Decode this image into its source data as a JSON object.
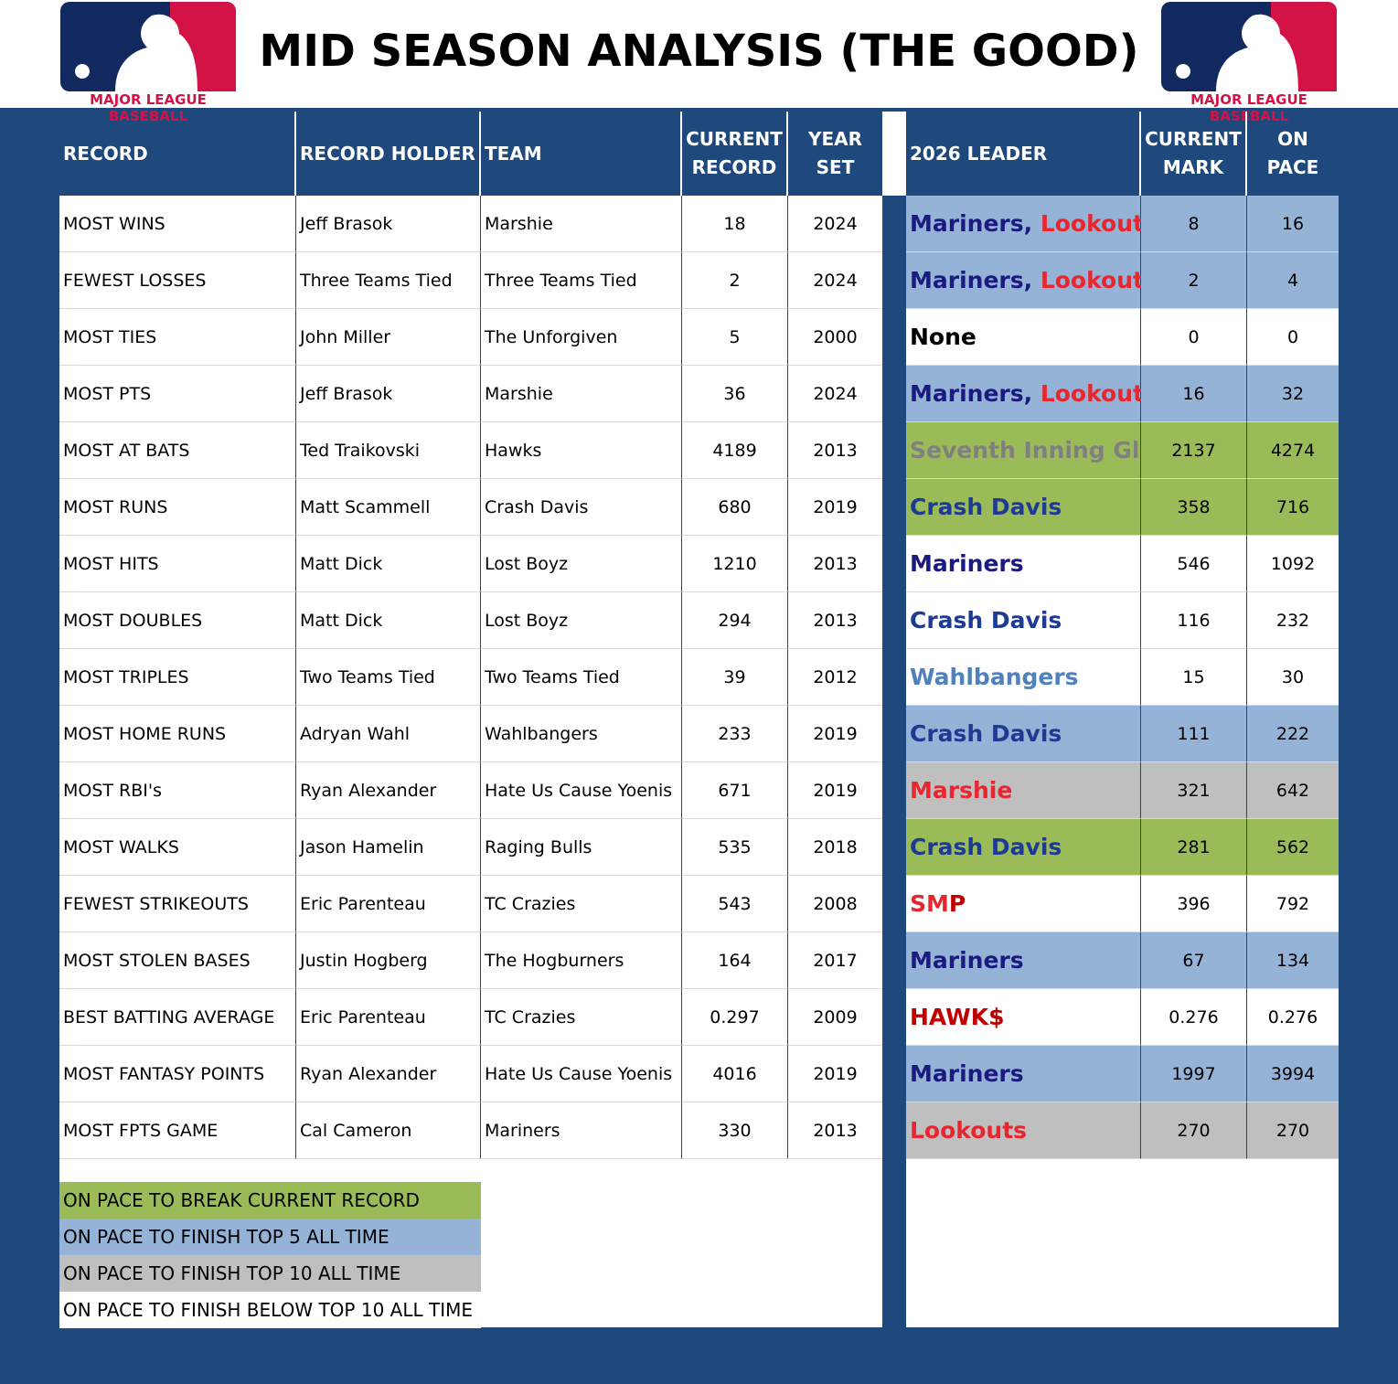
{
  "header": {
    "title": "MID SEASON ANALYSIS (THE GOOD)",
    "logo_text": "MAJOR LEAGUE BASEBALL"
  },
  "table": {
    "columns": [
      "RECORD",
      "RECORD HOLDER",
      "TEAM",
      "CURRENT RECORD",
      "YEAR SET",
      "2026 LEADER",
      "CURRENT MARK",
      "ON PACE"
    ],
    "rows": [
      [
        "MOST WINS",
        "Jeff Brasok",
        "Marshie",
        18,
        2024,
        [
          {
            "text": "Mariners, ",
            "color": "#1a1a80"
          },
          {
            "text": "Lookouts",
            "color": "#e8262f"
          }
        ],
        8,
        16,
        "#95b3d7"
      ],
      [
        "FEWEST LOSSES",
        "Three Teams Tied",
        "Three Teams Tied",
        2,
        2024,
        [
          {
            "text": "Mariners, ",
            "color": "#1a1a80"
          },
          {
            "text": "Lookouts",
            "color": "#e8262f"
          }
        ],
        2,
        4,
        "#95b3d7"
      ],
      [
        "MOST TIES",
        "John Miller",
        "The Unforgiven",
        5,
        2000,
        [
          {
            "text": "None",
            "color": "#000000"
          }
        ],
        0,
        0,
        "#ffffff"
      ],
      [
        "MOST PTS",
        "Jeff Brasok",
        "Marshie",
        36,
        2024,
        [
          {
            "text": "Mariners, ",
            "color": "#1a1a80"
          },
          {
            "text": "Lookouts",
            "color": "#e8262f"
          }
        ],
        16,
        32,
        "#95b3d7"
      ],
      [
        "MOST AT BATS",
        "Ted Traikovski",
        "Hawks",
        4189,
        2013,
        [
          {
            "text": "Seventh Inning Glitch",
            "color": "#808080"
          }
        ],
        2137,
        4274,
        "#9bbb59"
      ],
      [
        "MOST RUNS",
        "Matt Scammell",
        "Crash Davis",
        680,
        2019,
        [
          {
            "text": "Crash Davis",
            "color": "#1f3a93"
          }
        ],
        358,
        716,
        "#9bbb59"
      ],
      [
        "MOST HITS",
        "Matt Dick",
        "Lost Boyz",
        1210,
        2013,
        [
          {
            "text": "Mariners",
            "color": "#1a1a80"
          }
        ],
        546,
        1092,
        "#ffffff"
      ],
      [
        "MOST DOUBLES",
        "Matt Dick",
        "Lost Boyz",
        294,
        2013,
        [
          {
            "text": "Crash Davis",
            "color": "#1f3a93"
          }
        ],
        116,
        232,
        "#ffffff"
      ],
      [
        "MOST TRIPLES",
        "Two Teams Tied",
        "Two Teams Tied",
        39,
        2012,
        [
          {
            "text": "Wahlbangers",
            "color": "#4f81bd"
          }
        ],
        15,
        30,
        "#ffffff"
      ],
      [
        "MOST HOME RUNS",
        "Adryan Wahl",
        "Wahlbangers",
        233,
        2019,
        [
          {
            "text": "Crash Davis",
            "color": "#1f3a93"
          }
        ],
        111,
        222,
        "#95b3d7"
      ],
      [
        "MOST RBI's",
        "Ryan Alexander",
        "Hate Us Cause Yoenis",
        671,
        2019,
        [
          {
            "text": "Marshie",
            "color": "#e8262f"
          }
        ],
        321,
        642,
        "#bfbfbf"
      ],
      [
        "MOST WALKS",
        "Jason Hamelin",
        "Raging Bulls",
        535,
        2018,
        [
          {
            "text": "Crash Davis",
            "color": "#1f3a93"
          }
        ],
        281,
        562,
        "#9bbb59"
      ],
      [
        "FEWEST STRIKEOUTS",
        "Eric Parenteau",
        "TC Crazies",
        543,
        2008,
        [
          {
            "text": "SM",
            "color": "#e8262f"
          },
          {
            "text": "P",
            "color": "#c00000"
          }
        ],
        396,
        792,
        "#ffffff"
      ],
      [
        "MOST STOLEN BASES",
        "Justin Hogberg",
        "The Hogburners",
        164,
        2017,
        [
          {
            "text": "Mariners",
            "color": "#1a1a80"
          }
        ],
        67,
        134,
        "#95b3d7"
      ],
      [
        "BEST BATTING AVERAGE",
        "Eric Parenteau",
        "TC Crazies",
        0.297,
        2009,
        [
          {
            "text": "HAWK$",
            "color": "#c00000"
          }
        ],
        0.276,
        0.276,
        "#ffffff"
      ],
      [
        "MOST FANTASY POINTS",
        "Ryan Alexander",
        "Hate Us Cause Yoenis",
        4016,
        2019,
        [
          {
            "text": "Mariners",
            "color": "#1a1a80"
          }
        ],
        1997,
        3994,
        "#95b3d7"
      ],
      [
        "MOST FPTS GAME",
        "Cal Cameron",
        "Mariners",
        330,
        2013,
        [
          {
            "text": "Lookouts",
            "color": "#e8262f"
          }
        ],
        270,
        270,
        "#bfbfbf"
      ]
    ]
  },
  "legend": [
    {
      "label": "ON PACE TO BREAK CURRENT RECORD",
      "color": "#9bbb59"
    },
    {
      "label": "ON PACE TO FINISH TOP 5 ALL TIME",
      "color": "#95b3d7"
    },
    {
      "label": "ON PACE TO FINISH TOP 10 ALL TIME",
      "color": "#bfbfbf"
    },
    {
      "label": "ON PACE TO FINISH BELOW TOP 10 ALL TIME",
      "color": "#ffffff"
    }
  ]
}
